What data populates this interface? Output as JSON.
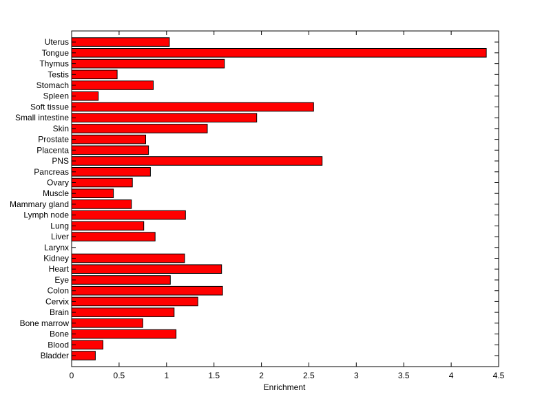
{
  "chart_data": {
    "type": "bar",
    "orientation": "horizontal",
    "categories": [
      "Bladder",
      "Blood",
      "Bone",
      "Bone marrow",
      "Brain",
      "Cervix",
      "Colon",
      "Eye",
      "Heart",
      "Kidney",
      "Larynx",
      "Liver",
      "Lung",
      "Lymph node",
      "Mammary gland",
      "Muscle",
      "Ovary",
      "Pancreas",
      "PNS",
      "Placenta",
      "Prostate",
      "Skin",
      "Small intestine",
      "Soft tissue",
      "Spleen",
      "Stomach",
      "Testis",
      "Thymus",
      "Tongue",
      "Uterus"
    ],
    "values": [
      0.25,
      0.33,
      1.1,
      0.75,
      1.08,
      1.33,
      1.59,
      1.04,
      1.58,
      1.19,
      0,
      0.88,
      0.76,
      1.2,
      0.63,
      0.44,
      0.64,
      0.83,
      2.64,
      0.81,
      0.78,
      1.43,
      1.95,
      2.55,
      0.28,
      0.86,
      0.48,
      1.61,
      4.37,
      1.03
    ],
    "xlabel": "Enrichment",
    "ylabel": "",
    "xlim": [
      0,
      4.5
    ],
    "xticks": [
      "0",
      "0.5",
      "1",
      "1.5",
      "2",
      "2.5",
      "3",
      "3.5",
      "4",
      "4.5"
    ],
    "grid": false,
    "bar_color": "#ff0000",
    "bar_edge_color": "#000000"
  }
}
